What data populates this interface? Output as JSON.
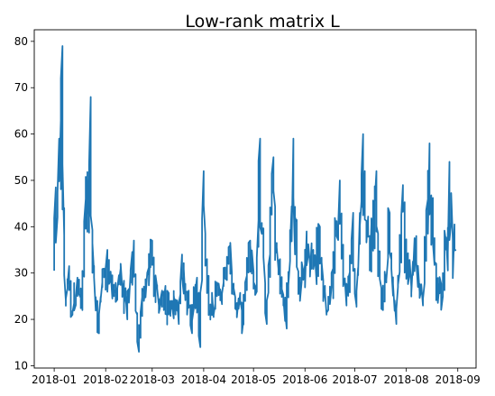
{
  "chart_data": {
    "type": "line",
    "title": "Low-rank matrix L",
    "xlabel": "",
    "ylabel": "",
    "x_range": [
      "2018-01-01",
      "2018-08-31"
    ],
    "xlim": [
      "2017-12-20",
      "2018-09-12"
    ],
    "ylim": [
      9.5,
      82.5
    ],
    "grid": false,
    "line_color": "#1f77b4",
    "x_ticks": [
      "2018-01",
      "2018-02",
      "2018-03",
      "2018-04",
      "2018-05",
      "2018-06",
      "2018-07",
      "2018-08",
      "2018-09"
    ],
    "x_tick_dates": [
      "2018-01-01",
      "2018-02-01",
      "2018-03-01",
      "2018-04-01",
      "2018-05-01",
      "2018-06-01",
      "2018-07-01",
      "2018-08-01",
      "2018-09-01"
    ],
    "y_ticks": [
      10,
      20,
      30,
      40,
      50,
      60,
      70,
      80
    ],
    "series": [
      {
        "x": [
          "2018-01-01",
          "2018-01-02",
          "2018-01-03",
          "2018-01-04",
          "2018-01-05",
          "2018-01-06",
          "2018-01-08",
          "2018-01-10",
          "2018-01-12",
          "2018-01-15",
          "2018-01-18",
          "2018-01-20",
          "2018-01-23",
          "2018-01-25",
          "2018-01-28",
          "2018-01-30",
          "2018-02-02",
          "2018-02-06",
          "2018-02-10",
          "2018-02-14",
          "2018-02-18",
          "2018-02-20",
          "2018-02-21",
          "2018-02-22",
          "2018-02-24",
          "2018-02-26",
          "2018-03-01",
          "2018-03-05",
          "2018-03-08",
          "2018-03-10",
          "2018-03-13",
          "2018-03-17",
          "2018-03-19",
          "2018-03-22",
          "2018-03-25",
          "2018-03-28",
          "2018-03-30",
          "2018-04-01",
          "2018-04-03",
          "2018-04-05",
          "2018-04-09",
          "2018-04-13",
          "2018-04-17",
          "2018-04-21",
          "2018-04-25",
          "2018-04-29",
          "2018-05-03",
          "2018-05-05",
          "2018-05-09",
          "2018-05-13",
          "2018-05-17",
          "2018-05-21",
          "2018-05-25",
          "2018-05-29",
          "2018-06-02",
          "2018-06-06",
          "2018-06-10",
          "2018-06-14",
          "2018-06-18",
          "2018-06-22",
          "2018-06-26",
          "2018-06-30",
          "2018-07-02",
          "2018-07-06",
          "2018-07-10",
          "2018-07-14",
          "2018-07-18",
          "2018-07-22",
          "2018-07-26",
          "2018-07-30",
          "2018-08-03",
          "2018-08-07",
          "2018-08-11",
          "2018-08-15",
          "2018-08-19",
          "2018-08-23",
          "2018-08-27",
          "2018-08-31"
        ],
        "y": [
          30.5,
          48.5,
          42,
          59,
          63,
          79,
          24,
          31.5,
          21,
          29,
          22,
          46,
          68,
          30,
          17,
          28,
          35,
          25,
          31,
          20,
          37,
          21,
          13,
          16,
          26,
          30,
          37,
          23,
          26,
          21,
          24,
          19,
          34,
          26,
          17,
          29,
          14,
          52,
          33,
          22,
          25,
          28,
          36,
          22,
          20,
          37,
          26,
          59,
          19,
          55,
          33,
          18,
          59,
          29,
          39,
          35,
          40,
          21,
          31,
          50,
          23,
          43,
          23,
          60,
          38,
          52,
          22,
          43,
          19,
          49,
          30,
          38,
          23,
          58,
          32,
          25,
          54,
          35
        ]
      }
    ]
  }
}
